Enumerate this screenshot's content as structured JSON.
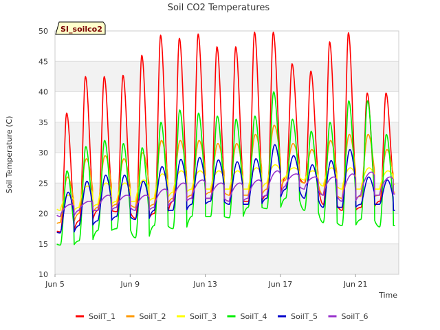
{
  "chart_data": {
    "type": "line",
    "title": "Soil CO2 Temperatures",
    "site_label": "SI_soilco2",
    "xlabel": "Time",
    "ylabel": "Soil Temperature (C)",
    "ylim": [
      10,
      50
    ],
    "yticks": [
      10,
      15,
      20,
      25,
      30,
      35,
      40,
      45,
      50
    ],
    "xlim_day": [
      5,
      23.3
    ],
    "xticks": [
      {
        "day": 5,
        "label": "Jun 5"
      },
      {
        "day": 9,
        "label": "Jun 9"
      },
      {
        "day": 13,
        "label": "Jun 13"
      },
      {
        "day": 17,
        "label": "Jun 17"
      },
      {
        "day": 21,
        "label": "Jun 21"
      }
    ],
    "grid": true,
    "legend": "bottom",
    "days": [
      5,
      6,
      7,
      8,
      9,
      10,
      11,
      12,
      13,
      14,
      15,
      16,
      17,
      18,
      19,
      20,
      21,
      22
    ],
    "series": [
      {
        "name": "SoilT_1",
        "color": "#ff0000",
        "peak_phase": 0.62,
        "sharpness": 4.0,
        "start": 17.2,
        "end": 23.2,
        "mins": [
          17.0,
          18.8,
          20.5,
          20.3,
          19.2,
          20.0,
          22.0,
          22.5,
          22.5,
          22.0,
          22.0,
          23.0,
          26.0,
          25.0,
          21.5,
          20.5,
          21.0,
          22.0
        ],
        "maxs": [
          36.5,
          42.5,
          42.5,
          42.7,
          46.0,
          49.3,
          48.8,
          49.5,
          47.4,
          47.4,
          49.8,
          49.8,
          44.6,
          43.4,
          48.2,
          49.7,
          39.8,
          39.8
        ]
      },
      {
        "name": "SoilT_2",
        "color": "#ff9900",
        "peak_phase": 0.67,
        "sharpness": 2.0,
        "start": 18.2,
        "end": 23.5,
        "mins": [
          18.5,
          20.0,
          21.0,
          21.5,
          21.0,
          21.5,
          22.5,
          23.0,
          23.5,
          23.0,
          23.0,
          24.0,
          25.5,
          25.0,
          23.0,
          22.5,
          22.8,
          23.0
        ],
        "maxs": [
          26.0,
          29.0,
          29.5,
          29.0,
          30.0,
          32.0,
          32.0,
          32.0,
          31.5,
          31.5,
          33.0,
          34.5,
          31.5,
          30.5,
          32.0,
          33.0,
          33.0,
          30.5
        ]
      },
      {
        "name": "SoilT_3",
        "color": "#ffff00",
        "peak_phase": 0.72,
        "sharpness": 1.2,
        "start": 21.0,
        "end": 24.8,
        "mins": [
          20.5,
          21.0,
          21.5,
          22.0,
          22.0,
          22.5,
          23.5,
          24.0,
          24.0,
          24.0,
          24.0,
          25.0,
          26.0,
          25.5,
          24.5,
          24.0,
          24.0,
          24.0
        ],
        "maxs": [
          23.0,
          24.5,
          25.0,
          25.0,
          25.5,
          26.5,
          27.0,
          27.0,
          27.0,
          27.0,
          27.5,
          28.0,
          27.5,
          27.0,
          27.5,
          27.5,
          27.5,
          27.0
        ]
      },
      {
        "name": "SoilT_4",
        "color": "#00ee00",
        "peak_phase": 0.64,
        "sharpness": 3.0,
        "start": 15.2,
        "end": 18.0,
        "mins": [
          14.8,
          15.5,
          17.2,
          17.5,
          16.0,
          18.0,
          17.5,
          19.5,
          19.5,
          19.3,
          21.0,
          20.8,
          22.5,
          20.5,
          18.5,
          18.0,
          19.0,
          17.8
        ],
        "maxs": [
          27.0,
          31.0,
          32.0,
          31.5,
          30.8,
          35.0,
          37.0,
          36.5,
          36.0,
          35.5,
          36.0,
          40.0,
          35.5,
          33.5,
          35.0,
          38.5,
          38.5,
          33.0
        ]
      },
      {
        "name": "SoilT_5",
        "color": "#0000cc",
        "peak_phase": 0.7,
        "sharpness": 2.2,
        "start": 17.0,
        "end": 20.5,
        "mins": [
          16.8,
          18.0,
          18.8,
          19.5,
          19.0,
          20.5,
          20.5,
          21.5,
          22.0,
          21.5,
          21.5,
          22.5,
          24.0,
          22.5,
          21.0,
          21.0,
          21.5,
          21.5
        ],
        "maxs": [
          23.5,
          25.3,
          26.3,
          26.3,
          25.3,
          27.7,
          28.9,
          29.2,
          28.8,
          28.5,
          29.0,
          31.3,
          29.5,
          28.0,
          28.7,
          30.5,
          26.0,
          25.5
        ]
      },
      {
        "name": "SoilT_6",
        "color": "#9933cc",
        "peak_phase": 0.85,
        "sharpness": 1.0,
        "start": 20.0,
        "end": 23.2,
        "mins": [
          19.5,
          20.5,
          20.5,
          21.0,
          20.5,
          21.0,
          22.0,
          22.5,
          22.5,
          22.0,
          22.5,
          23.0,
          24.5,
          24.0,
          23.0,
          22.0,
          23.0,
          23.0
        ],
        "maxs": [
          21.5,
          22.0,
          23.0,
          23.0,
          23.0,
          24.0,
          25.0,
          25.5,
          25.0,
          25.0,
          25.5,
          27.0,
          26.5,
          26.0,
          26.0,
          26.5,
          26.8,
          26.0
        ]
      }
    ]
  }
}
